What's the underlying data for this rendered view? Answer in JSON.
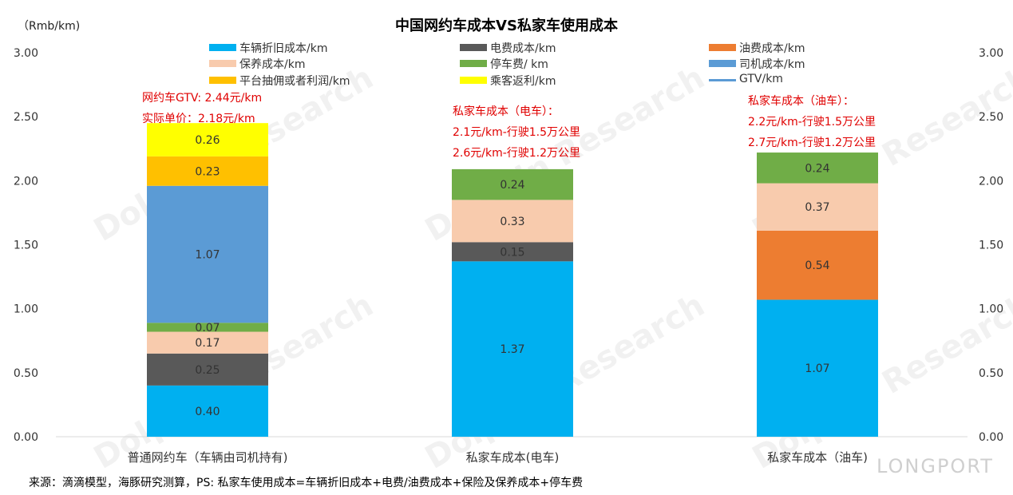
{
  "title": "中国网约车成本VS私家车使用成本",
  "unit_label": "（Rmb/km)",
  "footer": "来源：滴滴模型，海豚研究测算，PS: 私家车使用成本=车辆折旧成本+电费/油费成本+保险及保养成本+停车费",
  "watermark": "Dolphin Research",
  "logo": "LONGPORT",
  "colors": {
    "depreciation": "#00b0f0",
    "electricity": "#595959",
    "fuel": "#ed7d31",
    "maintenance": "#f8cbad",
    "parking": "#70ad47",
    "driver": "#5b9bd5",
    "platform": "#ffc000",
    "rebate": "#ffff00",
    "gtv": "#5b9bd5",
    "annotation": "#e00000"
  },
  "legend": [
    {
      "label": "车辆折旧成本/km",
      "color": "#00b0f0",
      "kind": "box"
    },
    {
      "label": "电费成本/km",
      "color": "#595959",
      "kind": "box"
    },
    {
      "label": "油费成本/km",
      "color": "#ed7d31",
      "kind": "box"
    },
    {
      "label": "保养成本/km",
      "color": "#f8cbad",
      "kind": "box"
    },
    {
      "label": "停车费/ km",
      "color": "#70ad47",
      "kind": "box"
    },
    {
      "label": "司机成本/km",
      "color": "#5b9bd5",
      "kind": "box"
    },
    {
      "label": "平台抽佣或者利润/km",
      "color": "#ffc000",
      "kind": "box"
    },
    {
      "label": "乘客返利/km",
      "color": "#ffff00",
      "kind": "box"
    },
    {
      "label": "GTV/km",
      "color": "#5b9bd5",
      "kind": "line"
    }
  ],
  "annotations": [
    {
      "lines": [
        "网约车GTV: 2.44元/km",
        "实际单价：2.18元/km"
      ]
    },
    {
      "lines": [
        "私家车成本（电车）：",
        "2.1元/km-行驶1.5万公里",
        "2.6元/km-行驶1.2万公里"
      ]
    },
    {
      "lines": [
        "私家车成本（油车）：",
        "2.2元/km-行驶1.5万公里",
        "2.7元/km-行驶1.2万公里"
      ]
    }
  ],
  "chart_data": {
    "type": "bar",
    "stacked": true,
    "title": "中国网约车成本VS私家车使用成本",
    "ylabel": "（Rmb/km)",
    "ylim": [
      0,
      3
    ],
    "yticks": [
      "0.00",
      "0.50",
      "1.00",
      "1.50",
      "2.00",
      "2.50",
      "3.00"
    ],
    "categories": [
      "普通网约车（车辆由司机持有)",
      "私家车成本(电车)",
      "私家车成本（油车)"
    ],
    "series": [
      {
        "name": "车辆折旧成本/km",
        "color": "#00b0f0",
        "label_color": "#333333",
        "values": [
          0.4,
          1.37,
          1.07
        ],
        "labels": [
          "0.40",
          "1.37",
          "1.07"
        ]
      },
      {
        "name": "电费成本/km",
        "color": "#595959",
        "label_color": "#333333",
        "values": [
          0.25,
          0.15,
          0
        ],
        "labels": [
          "0.25",
          "0.15",
          ""
        ]
      },
      {
        "name": "油费成本/km",
        "color": "#ed7d31",
        "label_color": "#333333",
        "values": [
          0,
          0,
          0.54
        ],
        "labels": [
          "",
          "",
          "0.54"
        ]
      },
      {
        "name": "保养成本/km",
        "color": "#f8cbad",
        "label_color": "#333333",
        "values": [
          0.17,
          0.33,
          0.37
        ],
        "labels": [
          "0.17",
          "0.33",
          "0.37"
        ]
      },
      {
        "name": "停车费/ km",
        "color": "#70ad47",
        "label_color": "#333333",
        "values": [
          0.07,
          0.24,
          0.24
        ],
        "labels": [
          "0.07",
          "0.24",
          "0.24"
        ]
      },
      {
        "name": "司机成本/km",
        "color": "#5b9bd5",
        "label_color": "#333333",
        "values": [
          1.07,
          0,
          0
        ],
        "labels": [
          "1.07",
          "",
          ""
        ]
      },
      {
        "name": "平台抽佣或者利润/km",
        "color": "#ffc000",
        "label_color": "#333333",
        "values": [
          0.23,
          0,
          0
        ],
        "labels": [
          "0.23",
          "",
          ""
        ]
      },
      {
        "name": "乘客返利/km",
        "color": "#ffff00",
        "label_color": "#333333",
        "values": [
          0.26,
          0,
          0
        ],
        "labels": [
          "0.26",
          "",
          ""
        ]
      }
    ],
    "gtv": {
      "name": "GTV/km"
    },
    "grid": false,
    "legend_position": "top"
  }
}
